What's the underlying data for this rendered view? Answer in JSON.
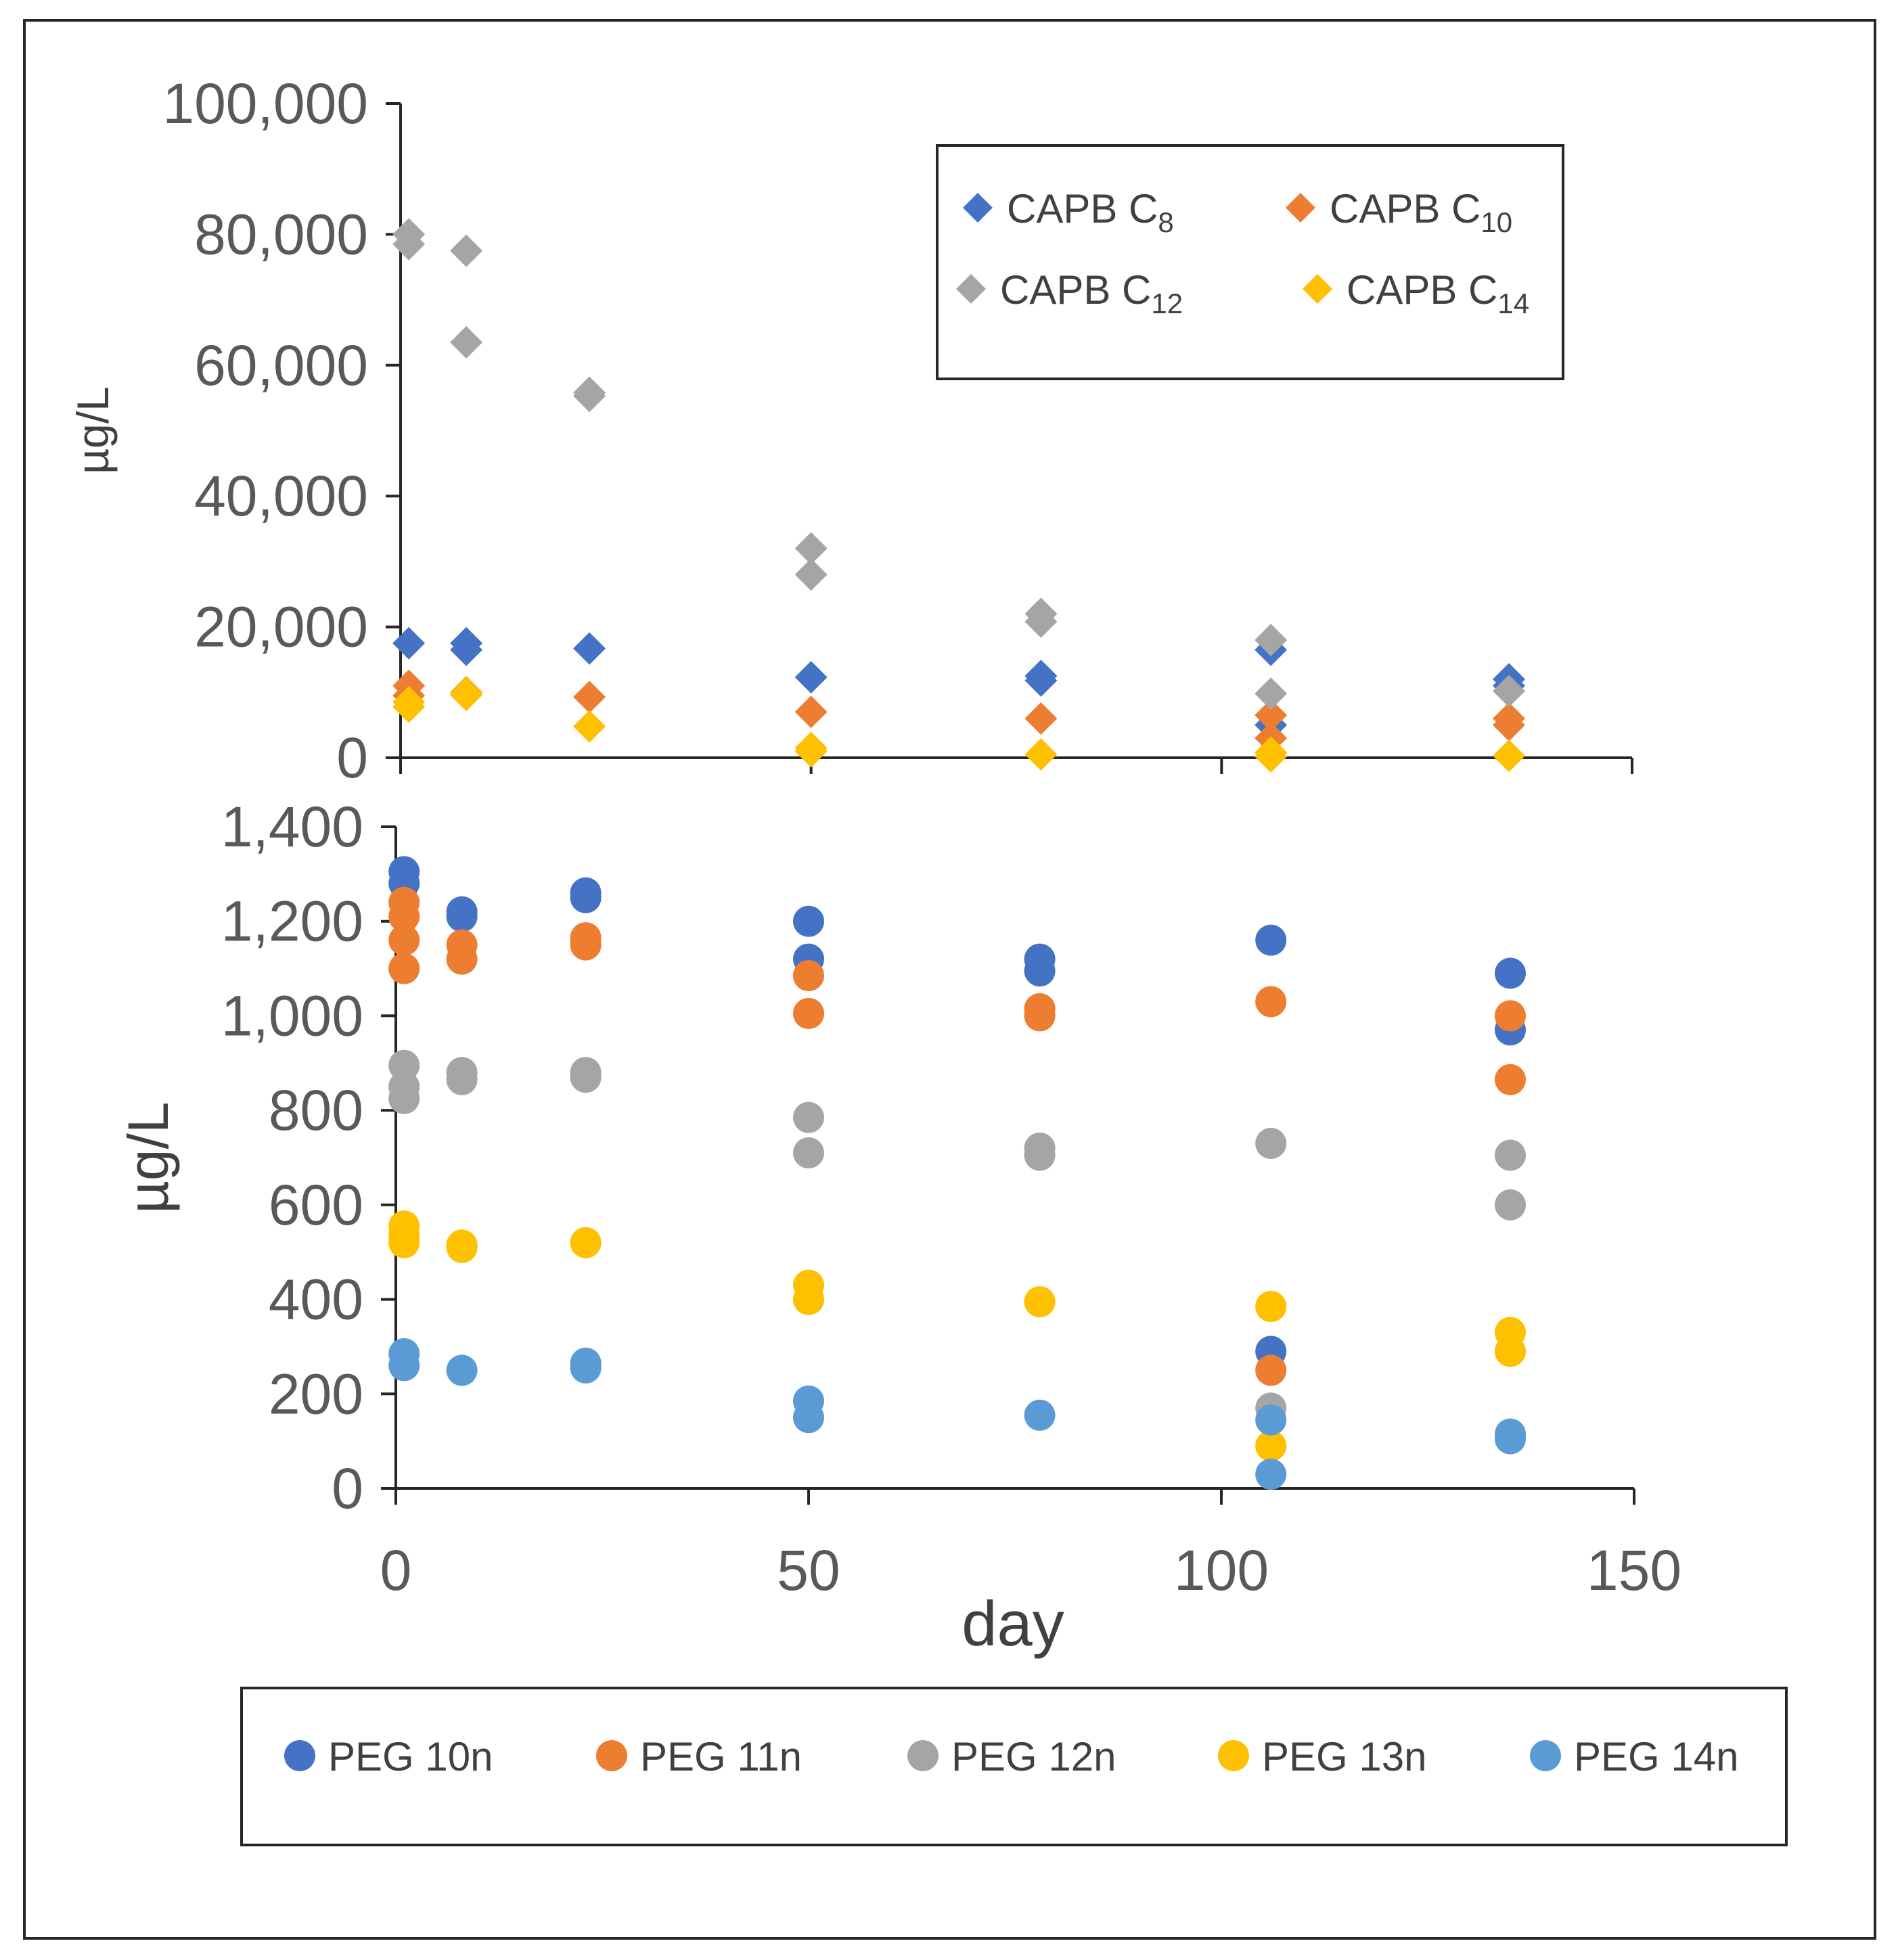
{
  "chart_data": [
    {
      "type": "scatter",
      "ylabel": "µg/L",
      "xlim": [
        0,
        150
      ],
      "ylim": [
        0,
        100000
      ],
      "yticks": [
        "0",
        "20,000",
        "40,000",
        "60,000",
        "80,000",
        "100,000"
      ],
      "marker": "diamond",
      "legend": {
        "placement": "top-right"
      },
      "series": [
        {
          "name": "CAPB C8",
          "base": "CAPB C",
          "subscript": "8",
          "color": "#4472C4",
          "points": [
            [
              1,
              17500
            ],
            [
              8,
              16500
            ],
            [
              8,
              17500
            ],
            [
              23,
              16700
            ],
            [
              50,
              12300
            ],
            [
              78,
              11800
            ],
            [
              78,
              12500
            ],
            [
              106,
              16500
            ],
            [
              106,
              5000
            ],
            [
              135,
              12000
            ],
            [
              135,
              11000
            ]
          ]
        },
        {
          "name": "CAPB C10",
          "base": "CAPB C",
          "subscript": "10",
          "color": "#ED7D31",
          "points": [
            [
              1,
              11000
            ],
            [
              1,
              9500
            ],
            [
              8,
              10000
            ],
            [
              23,
              9300
            ],
            [
              50,
              7000
            ],
            [
              78,
              6000
            ],
            [
              106,
              6500
            ],
            [
              106,
              3000
            ],
            [
              135,
              6000
            ],
            [
              135,
              5000
            ]
          ]
        },
        {
          "name": "CAPB C12",
          "base": "CAPB C",
          "subscript": "12",
          "color": "#A5A5A5",
          "points": [
            [
              1,
              80000
            ],
            [
              1,
              78500
            ],
            [
              8,
              77500
            ],
            [
              8,
              63500
            ],
            [
              23,
              55800
            ],
            [
              23,
              55300
            ],
            [
              50,
              32000
            ],
            [
              50,
              28000
            ],
            [
              78,
              22000
            ],
            [
              78,
              20800
            ],
            [
              106,
              18000
            ],
            [
              106,
              9800
            ],
            [
              135,
              10200
            ]
          ]
        },
        {
          "name": "CAPB C14",
          "base": "CAPB C",
          "subscript": "14",
          "color": "#FFC000",
          "points": [
            [
              1,
              8500
            ],
            [
              1,
              7800
            ],
            [
              8,
              9600
            ],
            [
              8,
              9900
            ],
            [
              23,
              4800
            ],
            [
              50,
              1000
            ],
            [
              50,
              1500
            ],
            [
              78,
              500
            ],
            [
              106,
              800
            ],
            [
              106,
              200
            ],
            [
              135,
              300
            ]
          ]
        }
      ]
    },
    {
      "type": "scatter",
      "ylabel": "µg/L",
      "xlabel": "day",
      "xlim": [
        0,
        150
      ],
      "ylim": [
        0,
        1400
      ],
      "xticks": [
        "0",
        "50",
        "100",
        "150"
      ],
      "yticks": [
        "0",
        "200",
        "400",
        "600",
        "800",
        "1,000",
        "1,200",
        "1,400"
      ],
      "marker": "circle",
      "legend": {
        "placement": "bottom"
      },
      "series": [
        {
          "name": "PEG 10n",
          "color": "#4472C4",
          "points": [
            [
              1,
              1305
            ],
            [
              1,
              1280
            ],
            [
              8,
              1220
            ],
            [
              8,
              1210
            ],
            [
              23,
              1260
            ],
            [
              23,
              1250
            ],
            [
              50,
              1200
            ],
            [
              50,
              1120
            ],
            [
              78,
              1120
            ],
            [
              78,
              1095
            ],
            [
              106,
              1160
            ],
            [
              106,
              290
            ],
            [
              135,
              1090
            ],
            [
              135,
              970
            ]
          ]
        },
        {
          "name": "PEG 11n",
          "color": "#ED7D31",
          "points": [
            [
              1,
              1240
            ],
            [
              1,
              1210
            ],
            [
              1,
              1160
            ],
            [
              1,
              1100
            ],
            [
              8,
              1150
            ],
            [
              8,
              1120
            ],
            [
              23,
              1165
            ],
            [
              23,
              1150
            ],
            [
              50,
              1085
            ],
            [
              50,
              1005
            ],
            [
              78,
              1015
            ],
            [
              78,
              1000
            ],
            [
              106,
              1030
            ],
            [
              106,
              250
            ],
            [
              135,
              1000
            ],
            [
              135,
              865
            ]
          ]
        },
        {
          "name": "PEG 12n",
          "color": "#A5A5A5",
          "points": [
            [
              1,
              895
            ],
            [
              1,
              850
            ],
            [
              1,
              825
            ],
            [
              8,
              880
            ],
            [
              8,
              865
            ],
            [
              23,
              880
            ],
            [
              23,
              870
            ],
            [
              50,
              785
            ],
            [
              50,
              710
            ],
            [
              78,
              720
            ],
            [
              78,
              705
            ],
            [
              106,
              730
            ],
            [
              106,
              170
            ],
            [
              135,
              705
            ],
            [
              135,
              600
            ]
          ]
        },
        {
          "name": "PEG 13n",
          "color": "#FFC000",
          "points": [
            [
              1,
              555
            ],
            [
              1,
              535
            ],
            [
              1,
              520
            ],
            [
              8,
              515
            ],
            [
              8,
              510
            ],
            [
              23,
              520
            ],
            [
              50,
              430
            ],
            [
              50,
              400
            ],
            [
              78,
              395
            ],
            [
              106,
              385
            ],
            [
              106,
              90
            ],
            [
              135,
              330
            ],
            [
              135,
              290
            ]
          ]
        },
        {
          "name": "PEG 14n",
          "color": "#5B9BD5",
          "points": [
            [
              1,
              285
            ],
            [
              1,
              260
            ],
            [
              8,
              250
            ],
            [
              23,
              265
            ],
            [
              23,
              255
            ],
            [
              50,
              185
            ],
            [
              50,
              150
            ],
            [
              78,
              155
            ],
            [
              106,
              145
            ],
            [
              106,
              30
            ],
            [
              135,
              115
            ],
            [
              135,
              105
            ]
          ]
        }
      ]
    }
  ]
}
